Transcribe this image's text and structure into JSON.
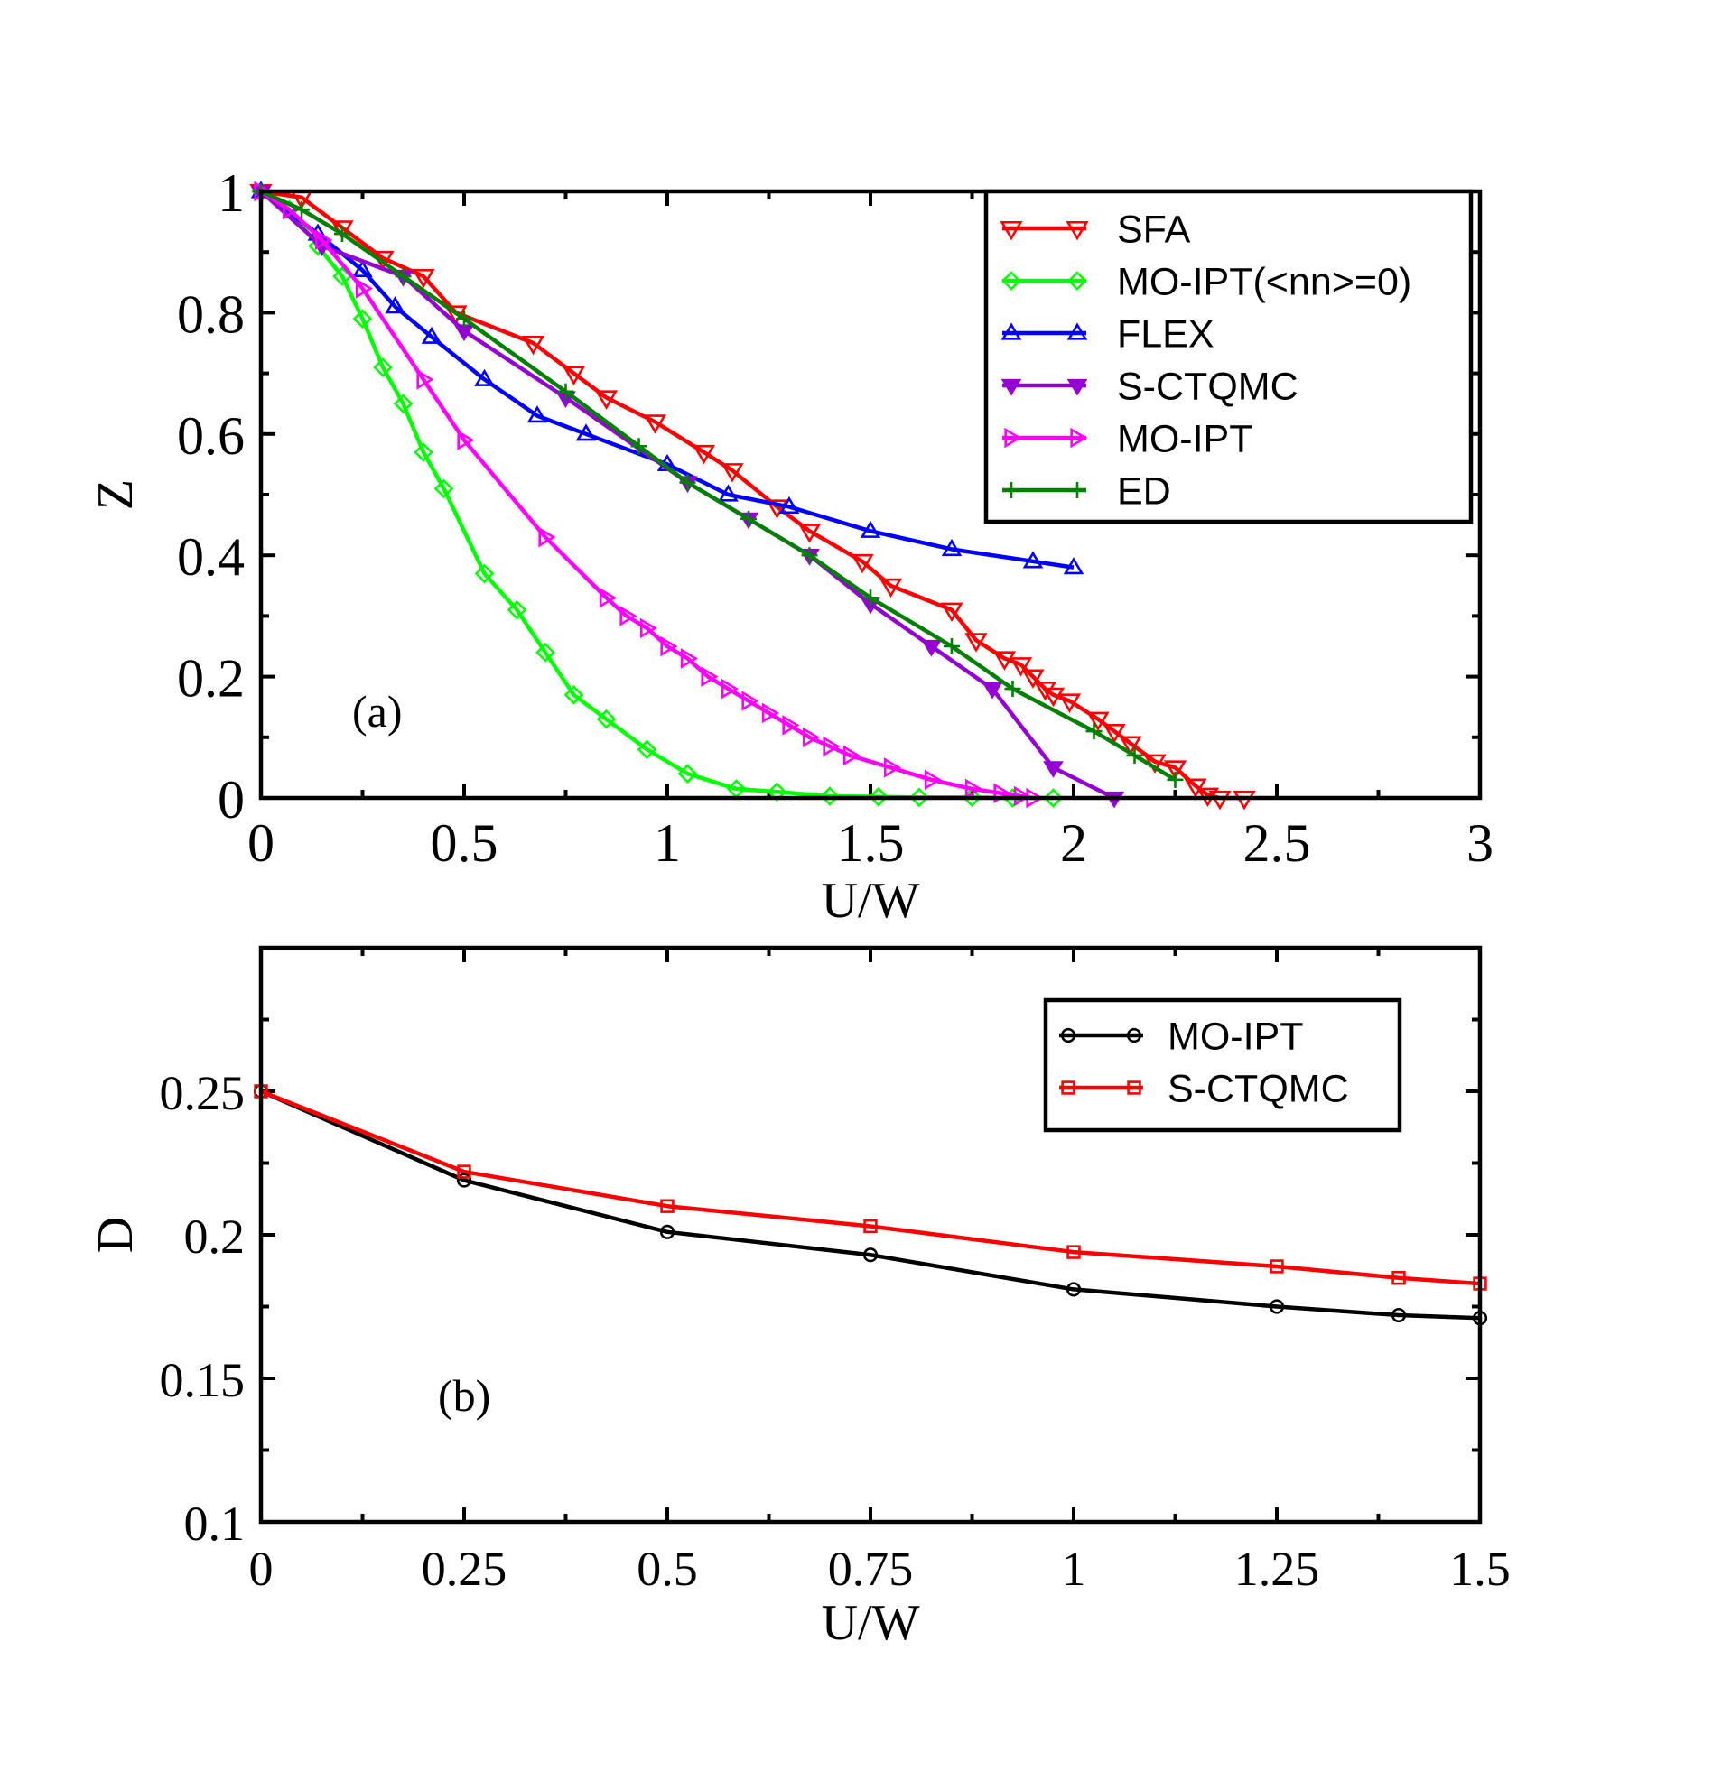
{
  "chart_data": [
    {
      "type": "line",
      "panel_label": "(a)",
      "xlabel": "U/W",
      "ylabel": "Z",
      "xlim": [
        0,
        3
      ],
      "ylim": [
        0,
        1
      ],
      "xticks": [
        0,
        0.5,
        1,
        1.5,
        2,
        2.5,
        3
      ],
      "xtick_labels": [
        "0",
        "0.5",
        "1",
        "1.5",
        "2",
        "2.5",
        "3"
      ],
      "yticks": [
        0,
        0.2,
        0.4,
        0.6,
        0.8,
        1
      ],
      "ytick_labels": [
        "0",
        "0.2",
        "0.4",
        "0.6",
        "0.8",
        "1"
      ],
      "legend_position": "top-right",
      "series": [
        {
          "name": "SFA",
          "color": "#ff0000",
          "marker": "triangle-down",
          "x": [
            0,
            0.1,
            0.2,
            0.3,
            0.4,
            0.48,
            0.67,
            0.77,
            0.85,
            0.97,
            1.09,
            1.16,
            1.27,
            1.35,
            1.48,
            1.55,
            1.7,
            1.76,
            1.83,
            1.87,
            1.9,
            1.93,
            1.95,
            1.99,
            2.06,
            2.1,
            2.14,
            2.2,
            2.25,
            2.3,
            2.33,
            2.36,
            2.42
          ],
          "y": [
            1,
            0.99,
            0.94,
            0.89,
            0.86,
            0.8,
            0.75,
            0.7,
            0.66,
            0.62,
            0.57,
            0.54,
            0.48,
            0.44,
            0.39,
            0.35,
            0.31,
            0.26,
            0.23,
            0.22,
            0.2,
            0.18,
            0.17,
            0.16,
            0.13,
            0.11,
            0.09,
            0.06,
            0.05,
            0.02,
            0.005,
            0,
            0
          ]
        },
        {
          "name": "MO-IPT(<nn>=0)",
          "color": "#00ff00",
          "marker": "diamond",
          "x": [
            0,
            0.07,
            0.14,
            0.2,
            0.25,
            0.3,
            0.35,
            0.4,
            0.45,
            0.55,
            0.63,
            0.7,
            0.77,
            0.85,
            0.95,
            1.05,
            1.17,
            1.27,
            1.4,
            1.52,
            1.62,
            1.75,
            1.85,
            1.95
          ],
          "y": [
            1,
            0.97,
            0.91,
            0.86,
            0.79,
            0.71,
            0.65,
            0.57,
            0.51,
            0.37,
            0.31,
            0.24,
            0.17,
            0.13,
            0.08,
            0.04,
            0.015,
            0.01,
            0.003,
            0.002,
            0.001,
            0.001,
            0.0,
            0.0
          ]
        },
        {
          "name": "FLEX",
          "color": "#0000ff",
          "marker": "triangle-up",
          "x": [
            0,
            0.14,
            0.25,
            0.33,
            0.42,
            0.55,
            0.68,
            0.8,
            1.0,
            1.15,
            1.3,
            1.5,
            1.7,
            1.9,
            2.0
          ],
          "y": [
            1,
            0.93,
            0.87,
            0.81,
            0.76,
            0.69,
            0.63,
            0.6,
            0.55,
            0.5,
            0.48,
            0.44,
            0.41,
            0.39,
            0.38
          ]
        },
        {
          "name": "S-CTQMC",
          "color": "#9400d3",
          "marker": "triangle-down-filled",
          "x": [
            0,
            0.15,
            0.35,
            0.5,
            0.75,
            1.05,
            1.2,
            1.35,
            1.5,
            1.65,
            1.8,
            1.95,
            2.1
          ],
          "y": [
            1,
            0.91,
            0.86,
            0.77,
            0.66,
            0.52,
            0.46,
            0.4,
            0.32,
            0.25,
            0.18,
            0.05,
            0
          ]
        },
        {
          "name": "MO-IPT",
          "color": "#ff00ff",
          "marker": "triangle-right",
          "x": [
            0,
            0.07,
            0.15,
            0.25,
            0.4,
            0.5,
            0.7,
            0.85,
            0.9,
            0.95,
            1.0,
            1.05,
            1.1,
            1.15,
            1.2,
            1.25,
            1.3,
            1.35,
            1.4,
            1.45,
            1.55,
            1.65,
            1.75,
            1.82,
            1.87,
            1.9
          ],
          "y": [
            1,
            0.97,
            0.92,
            0.84,
            0.69,
            0.59,
            0.43,
            0.33,
            0.3,
            0.28,
            0.25,
            0.23,
            0.2,
            0.18,
            0.16,
            0.14,
            0.12,
            0.1,
            0.085,
            0.07,
            0.05,
            0.03,
            0.015,
            0.008,
            0.003,
            0
          ]
        },
        {
          "name": "ED",
          "color": "#008000",
          "marker": "plus",
          "x": [
            0,
            0.1,
            0.2,
            0.35,
            0.5,
            0.75,
            0.93,
            1.05,
            1.2,
            1.35,
            1.5,
            1.7,
            1.85,
            2.05,
            2.15,
            2.25
          ],
          "y": [
            1,
            0.97,
            0.93,
            0.86,
            0.79,
            0.67,
            0.58,
            0.52,
            0.46,
            0.4,
            0.33,
            0.25,
            0.18,
            0.11,
            0.07,
            0.03
          ]
        }
      ]
    },
    {
      "type": "line",
      "panel_label": "(b)",
      "xlabel": "U/W",
      "ylabel": "D",
      "xlim": [
        0,
        1.5
      ],
      "ylim": [
        0.1,
        0.3
      ],
      "xticks": [
        0,
        0.25,
        0.5,
        0.75,
        1,
        1.25,
        1.5
      ],
      "xtick_labels": [
        "0",
        "0.25",
        "0.5",
        "0.75",
        "1",
        "1.25",
        "1.5"
      ],
      "yticks": [
        0.1,
        0.15,
        0.2,
        0.25
      ],
      "ytick_labels": [
        "0.1",
        "0.15",
        "0.2",
        "0.25"
      ],
      "legend_position": "top-right",
      "series": [
        {
          "name": "MO-IPT",
          "color": "#000000",
          "marker": "circle",
          "x": [
            0,
            0.25,
            0.5,
            0.75,
            1.0,
            1.25,
            1.4,
            1.5
          ],
          "y": [
            0.25,
            0.219,
            0.201,
            0.193,
            0.181,
            0.175,
            0.172,
            0.171
          ]
        },
        {
          "name": "S-CTQMC",
          "color": "#ff0000",
          "marker": "square",
          "x": [
            0,
            0.25,
            0.5,
            0.75,
            1.0,
            1.25,
            1.4,
            1.5
          ],
          "y": [
            0.25,
            0.222,
            0.21,
            0.203,
            0.194,
            0.189,
            0.185,
            0.183
          ]
        }
      ]
    }
  ]
}
